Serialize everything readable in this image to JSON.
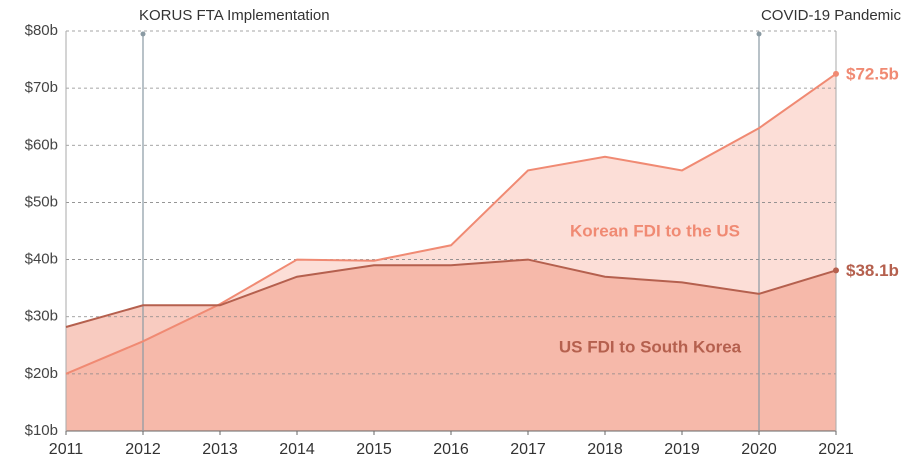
{
  "chart_data": {
    "type": "area",
    "x": [
      2011,
      2012,
      2013,
      2014,
      2015,
      2016,
      2017,
      2018,
      2019,
      2020,
      2021
    ],
    "xlim": [
      2011,
      2021
    ],
    "xticks": [
      2011,
      2012,
      2013,
      2014,
      2015,
      2016,
      2017,
      2018,
      2019,
      2020,
      2021
    ],
    "ylim": [
      10,
      80
    ],
    "yticks": [
      {
        "value": 10,
        "label": "$10b"
      },
      {
        "value": 20,
        "label": "$20b"
      },
      {
        "value": 30,
        "label": "$30b"
      },
      {
        "value": 40,
        "label": "$40b"
      },
      {
        "value": 50,
        "label": "$50b"
      },
      {
        "value": 60,
        "label": "$60b"
      },
      {
        "value": 70,
        "label": "$70b"
      },
      {
        "value": 80,
        "label": "$80b"
      }
    ],
    "grid": true,
    "series": [
      {
        "name": "Korean FDI to the US",
        "color": "#f08a73",
        "values": [
          20,
          25.7,
          32.2,
          40,
          39.8,
          42.5,
          55.6,
          58,
          55.6,
          63,
          72.5
        ],
        "value_labels": [
          null,
          null,
          null,
          null,
          null,
          null,
          null,
          null,
          null,
          null,
          "$72.5b"
        ]
      },
      {
        "name": "US FDI to South Korea",
        "color": "#b5604e",
        "values": [
          28.2,
          32,
          32,
          37,
          39,
          39,
          40,
          37,
          36,
          34,
          38.1
        ],
        "value_labels": [
          null,
          null,
          null,
          null,
          null,
          null,
          null,
          null,
          null,
          null,
          "$38.1b"
        ]
      }
    ],
    "annotations": [
      {
        "text": "KORUS FTA Implementation",
        "x": 2012
      },
      {
        "text": "COVID-19 Pandemic",
        "x": 2020
      }
    ]
  }
}
